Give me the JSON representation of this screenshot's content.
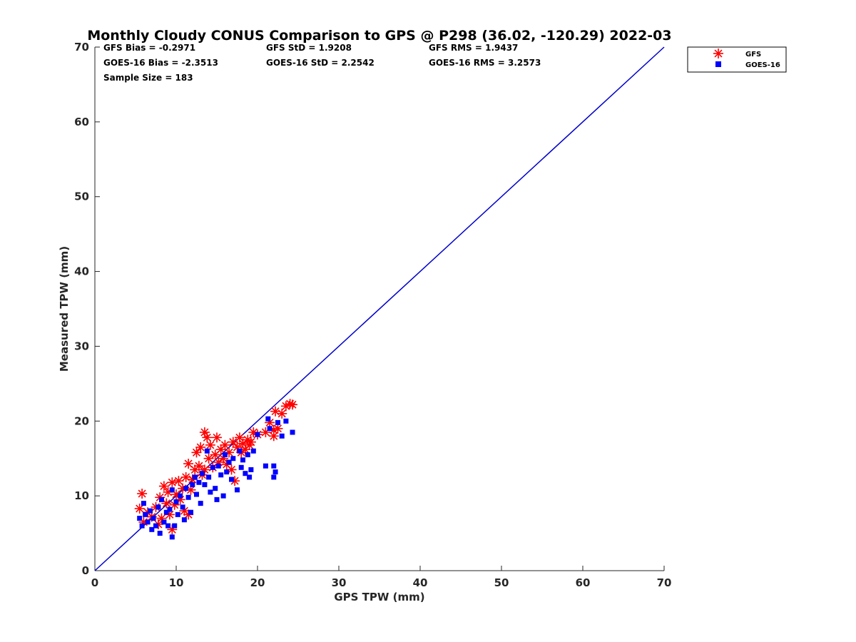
{
  "chart_data": {
    "type": "scatter",
    "title": "Monthly Cloudy CONUS Comparison to GPS @ P298 (36.02, -120.29) 2022-03",
    "xlabel": "GPS TPW (mm)",
    "ylabel": "Measured TPW (mm)",
    "xlim": [
      0,
      70
    ],
    "ylim": [
      0,
      70
    ],
    "xticks": [
      "0",
      "10",
      "20",
      "30",
      "40",
      "50",
      "60",
      "70"
    ],
    "yticks": [
      "0",
      "10",
      "20",
      "30",
      "40",
      "50",
      "60",
      "70"
    ],
    "grid": false,
    "legend_position": "outside top-right",
    "stats": {
      "gfs_bias": "GFS Bias = -0.2971",
      "gfs_std": "GFS StD = 1.9208",
      "gfs_rms": "GFS RMS = 1.9437",
      "goes_bias": "GOES-16 Bias = -2.3513",
      "goes_std": "GOES-16 StD = 2.2542",
      "goes_rms": "GOES-16 RMS = 3.2573",
      "sample_size": "Sample Size = 183"
    },
    "reference_line": {
      "x": [
        0,
        70
      ],
      "y": [
        0,
        70
      ],
      "color": "#0000cc"
    },
    "series": [
      {
        "name": "GFS",
        "marker": "asterisk",
        "color": "#ff0000",
        "points": [
          [
            5.5,
            8.3
          ],
          [
            5.8,
            10.3
          ],
          [
            6.0,
            6.5
          ],
          [
            6.5,
            7.8
          ],
          [
            7.0,
            7.2
          ],
          [
            7.5,
            8.5
          ],
          [
            7.8,
            6.2
          ],
          [
            8.0,
            9.8
          ],
          [
            8.2,
            7.0
          ],
          [
            8.5,
            11.3
          ],
          [
            8.8,
            9.0
          ],
          [
            9.0,
            10.5
          ],
          [
            9.2,
            7.5
          ],
          [
            9.5,
            5.5
          ],
          [
            9.5,
            11.8
          ],
          [
            9.8,
            8.8
          ],
          [
            10.0,
            10.2
          ],
          [
            10.3,
            12.0
          ],
          [
            10.5,
            9.5
          ],
          [
            10.8,
            11.0
          ],
          [
            11.0,
            8.0
          ],
          [
            11.2,
            12.5
          ],
          [
            11.5,
            14.3
          ],
          [
            11.5,
            7.5
          ],
          [
            11.8,
            10.8
          ],
          [
            12.0,
            12.2
          ],
          [
            12.3,
            13.5
          ],
          [
            12.5,
            15.8
          ],
          [
            12.8,
            14.0
          ],
          [
            13.0,
            16.5
          ],
          [
            13.2,
            12.8
          ],
          [
            13.5,
            18.5
          ],
          [
            13.5,
            13.5
          ],
          [
            13.8,
            17.8
          ],
          [
            14.0,
            15.0
          ],
          [
            14.2,
            16.8
          ],
          [
            14.5,
            13.8
          ],
          [
            14.8,
            15.5
          ],
          [
            15.0,
            17.8
          ],
          [
            15.2,
            14.5
          ],
          [
            15.5,
            16.2
          ],
          [
            15.8,
            15.0
          ],
          [
            16.0,
            16.8
          ],
          [
            16.2,
            14.2
          ],
          [
            16.5,
            15.8
          ],
          [
            16.8,
            13.5
          ],
          [
            17.0,
            17.2
          ],
          [
            17.2,
            12.0
          ],
          [
            17.5,
            16.5
          ],
          [
            17.8,
            17.8
          ],
          [
            18.0,
            15.8
          ],
          [
            18.2,
            17.0
          ],
          [
            18.5,
            16.2
          ],
          [
            18.8,
            17.5
          ],
          [
            19.0,
            16.8
          ],
          [
            19.2,
            17.2
          ],
          [
            19.5,
            18.5
          ],
          [
            20.0,
            18.2
          ],
          [
            21.0,
            18.5
          ],
          [
            21.5,
            19.8
          ],
          [
            22.0,
            18.0
          ],
          [
            22.0,
            18.8
          ],
          [
            22.2,
            21.3
          ],
          [
            22.5,
            19.0
          ],
          [
            23.0,
            21.0
          ],
          [
            23.5,
            22.0
          ],
          [
            24.0,
            22.3
          ],
          [
            24.3,
            22.2
          ]
        ]
      },
      {
        "name": "GOES-16",
        "marker": "square",
        "color": "#0000ff",
        "points": [
          [
            5.5,
            7.0
          ],
          [
            5.8,
            6.0
          ],
          [
            6.0,
            9.0
          ],
          [
            6.2,
            7.5
          ],
          [
            6.5,
            6.5
          ],
          [
            6.8,
            8.0
          ],
          [
            7.0,
            5.5
          ],
          [
            7.2,
            7.0
          ],
          [
            7.5,
            6.0
          ],
          [
            7.8,
            8.5
          ],
          [
            8.0,
            5.0
          ],
          [
            8.2,
            9.5
          ],
          [
            8.5,
            6.5
          ],
          [
            8.8,
            7.8
          ],
          [
            9.0,
            6.0
          ],
          [
            9.2,
            8.2
          ],
          [
            9.5,
            4.5
          ],
          [
            9.5,
            10.8
          ],
          [
            9.8,
            6.0
          ],
          [
            10.0,
            9.2
          ],
          [
            10.2,
            7.5
          ],
          [
            10.5,
            10.0
          ],
          [
            10.8,
            8.5
          ],
          [
            11.0,
            6.8
          ],
          [
            11.2,
            11.0
          ],
          [
            11.5,
            9.8
          ],
          [
            11.8,
            7.8
          ],
          [
            12.0,
            11.5
          ],
          [
            12.3,
            12.5
          ],
          [
            12.5,
            10.2
          ],
          [
            12.8,
            11.8
          ],
          [
            13.0,
            9.0
          ],
          [
            13.2,
            13.0
          ],
          [
            13.5,
            11.5
          ],
          [
            13.8,
            16.0
          ],
          [
            14.0,
            12.5
          ],
          [
            14.2,
            10.5
          ],
          [
            14.5,
            13.8
          ],
          [
            14.8,
            11.0
          ],
          [
            15.0,
            9.5
          ],
          [
            15.2,
            14.0
          ],
          [
            15.5,
            12.8
          ],
          [
            15.8,
            10.0
          ],
          [
            16.0,
            15.5
          ],
          [
            16.2,
            13.2
          ],
          [
            16.5,
            14.5
          ],
          [
            16.8,
            12.2
          ],
          [
            17.0,
            15.0
          ],
          [
            17.5,
            10.8
          ],
          [
            17.8,
            16.0
          ],
          [
            18.0,
            13.8
          ],
          [
            18.2,
            14.8
          ],
          [
            18.5,
            13.0
          ],
          [
            18.8,
            15.5
          ],
          [
            19.0,
            12.5
          ],
          [
            19.2,
            13.5
          ],
          [
            19.5,
            16.0
          ],
          [
            20.0,
            18.2
          ],
          [
            21.0,
            14.0
          ],
          [
            21.3,
            20.3
          ],
          [
            21.5,
            19.0
          ],
          [
            22.0,
            12.5
          ],
          [
            22.0,
            14.0
          ],
          [
            22.2,
            13.2
          ],
          [
            22.5,
            19.8
          ],
          [
            23.0,
            18.0
          ],
          [
            23.5,
            20.0
          ],
          [
            24.3,
            18.5
          ]
        ]
      }
    ]
  }
}
